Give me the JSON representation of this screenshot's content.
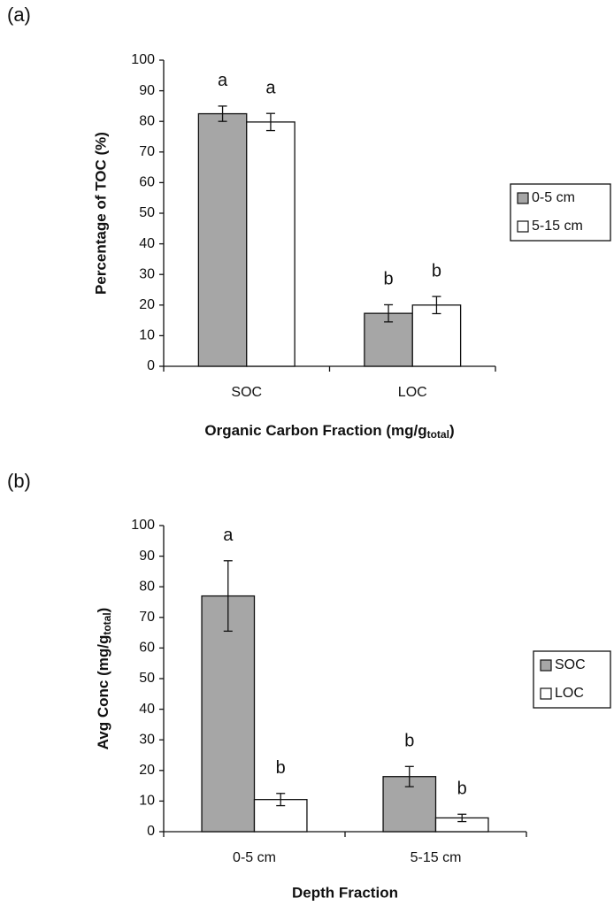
{
  "chart_data": [
    {
      "type": "bar",
      "panel": "(a)",
      "ylabel": "Percentage of TOC (%)",
      "xlabel": [
        "Organic Carbon Fraction (mg/g",
        "total",
        ")"
      ],
      "categories": [
        "SOC",
        "LOC"
      ],
      "series": [
        {
          "name": "0-5 cm",
          "color": "#a6a6a6",
          "values": [
            82.5,
            17.3
          ],
          "errors": [
            2.5,
            2.8
          ],
          "annotations": [
            "a",
            "b"
          ]
        },
        {
          "name": "5-15 cm",
          "color": "#ffffff",
          "values": [
            79.8,
            20
          ],
          "errors": [
            2.8,
            2.8
          ],
          "annotations": [
            "a",
            "b"
          ]
        }
      ],
      "ylim": [
        0,
        100
      ],
      "yticks": [
        0,
        10,
        20,
        30,
        40,
        50,
        60,
        70,
        80,
        90,
        100
      ],
      "grid": false,
      "legend": "right"
    },
    {
      "type": "bar",
      "panel": "(b)",
      "ylabel": [
        "Avg Conc (mg/g",
        "total",
        ")"
      ],
      "xlabel": "Depth Fraction",
      "categories": [
        "0-5 cm",
        "5-15 cm"
      ],
      "series": [
        {
          "name": "SOC",
          "color": "#a6a6a6",
          "values": [
            77,
            18
          ],
          "errors": [
            11.5,
            3.3
          ],
          "annotations": [
            "a",
            "b"
          ]
        },
        {
          "name": "LOC",
          "color": "#ffffff",
          "values": [
            10.5,
            4.5
          ],
          "errors": [
            2,
            1.2
          ],
          "annotations": [
            "b",
            "b"
          ]
        }
      ],
      "ylim": [
        0,
        100
      ],
      "yticks": [
        0,
        10,
        20,
        30,
        40,
        50,
        60,
        70,
        80,
        90,
        100
      ],
      "grid": false,
      "legend": "right"
    }
  ]
}
